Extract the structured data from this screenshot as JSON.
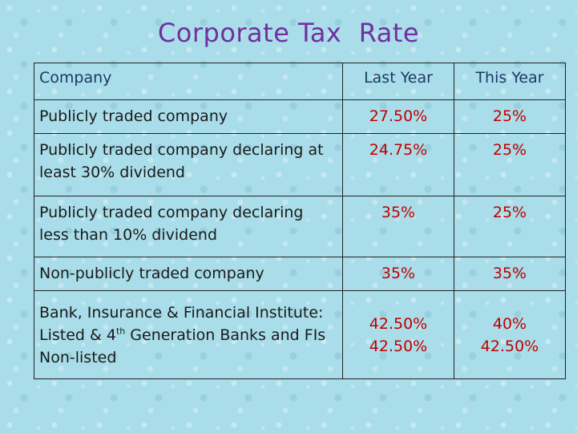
{
  "title": "Corporate Tax  Rate",
  "table": {
    "headers": {
      "company": "Company",
      "last_year": "Last Year",
      "this_year": "This Year"
    },
    "rows": [
      {
        "company_lines": [
          "Publicly traded company"
        ],
        "last_year": [
          "27.50%"
        ],
        "this_year": [
          "25%"
        ]
      },
      {
        "company_lines": [
          "Publicly traded company declaring  at",
          "least  30%  dividend"
        ],
        "last_year": [
          "24.75%"
        ],
        "this_year": [
          "25%"
        ]
      },
      {
        "company_lines": [
          "Publicly traded company declaring",
          "less than 10% dividend"
        ],
        "last_year": [
          "35%"
        ],
        "this_year": [
          "25%"
        ]
      },
      {
        "company_lines": [
          "Non-publicly traded company"
        ],
        "last_year": [
          "35%"
        ],
        "this_year": [
          "35%"
        ]
      },
      {
        "company_lines": [
          "Bank, Insurance & Financial Institute:"
        ],
        "company_line2": {
          "prefix": "Listed & 4",
          "sup": "th",
          "suffix": " Generation Banks and FIs"
        },
        "company_line3": "Non-listed",
        "last_year": [
          "42.50%",
          "42.50%"
        ],
        "this_year": [
          "40%",
          "42.50%"
        ]
      }
    ]
  },
  "colors": {
    "title": "#7030a0",
    "header_text": "#1f3864",
    "rate_text": "#c00000",
    "background": "#a9dde9",
    "border": "#222222"
  }
}
